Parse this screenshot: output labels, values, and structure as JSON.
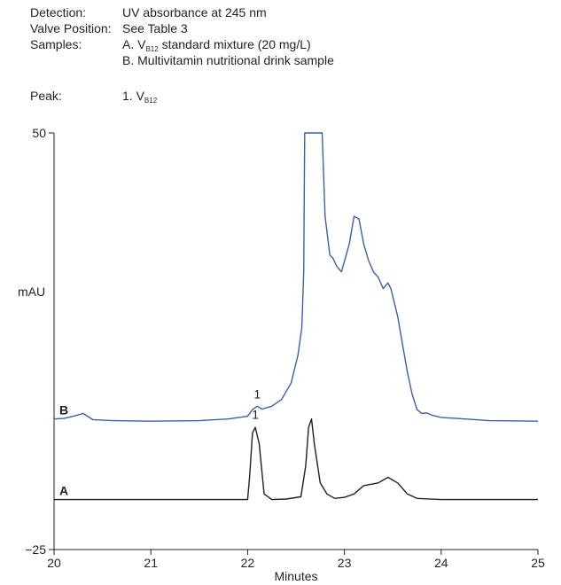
{
  "header": {
    "rows": [
      {
        "label": "Detection:",
        "value": "UV absorbance at 245 nm"
      },
      {
        "label": "Valve Position:",
        "value": "See Table 3"
      },
      {
        "label": "Samples:",
        "value_prefix": "A. V",
        "value_sub": "B12",
        "value_suffix": " standard mixture (20 mg/L)"
      },
      {
        "label": "",
        "value": "B. Multivitamin nutritional drink sample"
      },
      {
        "label": "Peak:",
        "value_prefix": "1. V",
        "value_sub": "B12",
        "value_suffix": ""
      }
    ]
  },
  "chart_data": {
    "type": "line",
    "xlabel": "Minutes",
    "ylabel": "mAU",
    "xlim": [
      20,
      25
    ],
    "ylim": [
      -25,
      50
    ],
    "x_ticks": [
      "20",
      "21",
      "22",
      "23",
      "24",
      "25"
    ],
    "y_ticks": [
      "50",
      "−25"
    ],
    "series": [
      {
        "name": "B",
        "color": "#3d5fa8",
        "points": [
          [
            20.0,
            -1.5
          ],
          [
            20.1,
            -1.4
          ],
          [
            20.2,
            -1.0
          ],
          [
            20.3,
            -0.5
          ],
          [
            20.4,
            -1.6
          ],
          [
            20.6,
            -1.8
          ],
          [
            21.0,
            -1.9
          ],
          [
            21.5,
            -1.8
          ],
          [
            21.8,
            -1.5
          ],
          [
            22.0,
            -1.0
          ],
          [
            22.05,
            0.2
          ],
          [
            22.1,
            0.8
          ],
          [
            22.15,
            0.3
          ],
          [
            22.25,
            0.8
          ],
          [
            22.35,
            2.0
          ],
          [
            22.45,
            5.0
          ],
          [
            22.52,
            10.0
          ],
          [
            22.56,
            15.0
          ],
          [
            22.58,
            25.0
          ],
          [
            22.59,
            50.0
          ],
          [
            22.77,
            50.0
          ],
          [
            22.8,
            35.0
          ],
          [
            22.85,
            28.0
          ],
          [
            22.88,
            27.5
          ],
          [
            22.92,
            26.0
          ],
          [
            22.97,
            25.0
          ],
          [
            23.05,
            30.0
          ],
          [
            23.1,
            35.0
          ],
          [
            23.15,
            34.5
          ],
          [
            23.2,
            30.0
          ],
          [
            23.25,
            27.0
          ],
          [
            23.3,
            25.0
          ],
          [
            23.35,
            24.0
          ],
          [
            23.4,
            22.0
          ],
          [
            23.45,
            23.0
          ],
          [
            23.48,
            22.0
          ],
          [
            23.55,
            17.0
          ],
          [
            23.6,
            12.0
          ],
          [
            23.65,
            7.0
          ],
          [
            23.7,
            3.0
          ],
          [
            23.75,
            0.2
          ],
          [
            23.8,
            -0.5
          ],
          [
            23.85,
            -0.4
          ],
          [
            23.9,
            -0.8
          ],
          [
            24.0,
            -1.2
          ],
          [
            24.5,
            -1.8
          ],
          [
            25.0,
            -1.9
          ]
        ]
      },
      {
        "name": "A",
        "color": "#231f20",
        "points": [
          [
            20.0,
            -16.0
          ],
          [
            21.5,
            -16.0
          ],
          [
            22.0,
            -16.0
          ],
          [
            22.02,
            -12.0
          ],
          [
            22.05,
            -4.0
          ],
          [
            22.08,
            -3.0
          ],
          [
            22.12,
            -6.0
          ],
          [
            22.17,
            -15.0
          ],
          [
            22.25,
            -16.0
          ],
          [
            22.4,
            -15.9
          ],
          [
            22.55,
            -15.5
          ],
          [
            22.6,
            -10.0
          ],
          [
            22.63,
            -3.0
          ],
          [
            22.66,
            -1.5
          ],
          [
            22.69,
            -6.0
          ],
          [
            22.75,
            -13.0
          ],
          [
            22.82,
            -15.0
          ],
          [
            22.9,
            -15.8
          ],
          [
            23.0,
            -15.6
          ],
          [
            23.1,
            -15.0
          ],
          [
            23.2,
            -13.5
          ],
          [
            23.35,
            -13.0
          ],
          [
            23.45,
            -12.0
          ],
          [
            23.55,
            -13.0
          ],
          [
            23.65,
            -15.0
          ],
          [
            23.75,
            -15.8
          ],
          [
            24.0,
            -16.0
          ],
          [
            25.0,
            -16.0
          ]
        ]
      }
    ],
    "peak_labels": [
      {
        "text": "1",
        "x": 22.1,
        "y": 2.2
      },
      {
        "text": "1",
        "x": 22.08,
        "y": -1.5
      }
    ]
  }
}
